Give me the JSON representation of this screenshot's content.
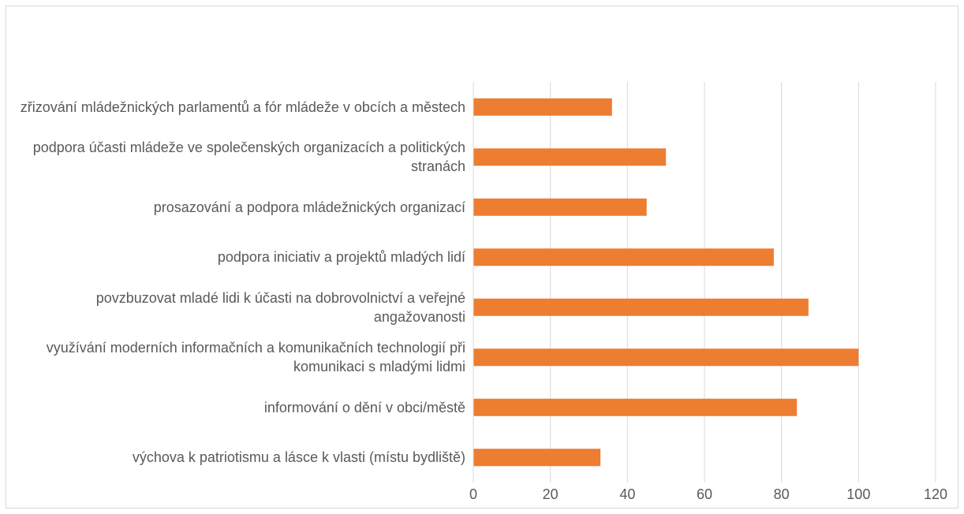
{
  "chart_data": {
    "type": "barh",
    "categories": [
      "zřizování mládežnických parlamentů a fór mládeže v obcích a městech",
      "podpora účasti mládeže ve společenských organizacích a politických stranách",
      "prosazování a podpora mládežnických organizací",
      "podpora iniciativ a projektů mladých lidí",
      "povzbuzovat mladé lidi k účasti na dobrovolnictví a veřejné angažovanosti",
      "využívání moderních informačních a komunikačních technologií při komunikaci s mladými lidmi",
      "informování o dění v obci/městě",
      "výchova k patriotismu a lásce  k vlasti (místu bydliště)"
    ],
    "values": [
      36,
      50,
      45,
      78,
      87,
      100,
      84,
      33
    ],
    "color": "#ed7d31",
    "xlim": [
      0,
      120
    ],
    "xticks": [
      0,
      20,
      40,
      60,
      80,
      100,
      120
    ],
    "grid": true
  }
}
